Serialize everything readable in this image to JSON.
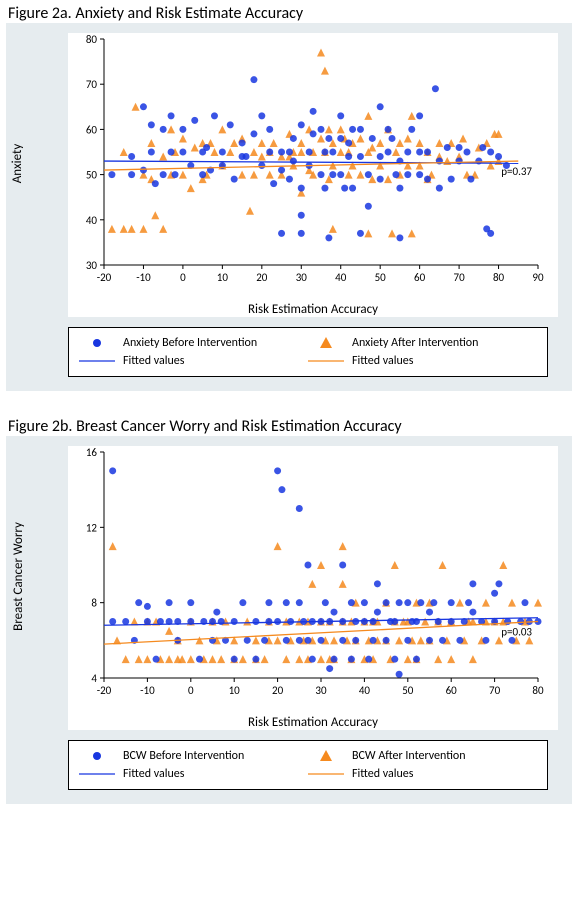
{
  "colors": {
    "panel_bg": "#e6ecef",
    "plot_bg": "#ffffff",
    "axis": "#000000",
    "before": "#1836e0",
    "after": "#f58a1f"
  },
  "chartA": {
    "title": "Figure 2a. Anxiety and Risk Estimate Accuracy",
    "xlabel": "Risk Estimation Accuracy",
    "ylabel": "Anxiety",
    "xlim": [
      -20,
      90
    ],
    "ylim": [
      30,
      80
    ],
    "xticks": [
      -20,
      -10,
      0,
      10,
      20,
      30,
      40,
      50,
      60,
      70,
      80,
      90
    ],
    "yticks": [
      30,
      40,
      50,
      60,
      70,
      80
    ],
    "pvalue": "p=0.37",
    "line_before": {
      "x1": -20,
      "y1": 53,
      "x2": 85,
      "y2": 52.5
    },
    "line_after": {
      "x1": -20,
      "y1": 51,
      "x2": 85,
      "y2": 53
    },
    "legend_before": "Anxiety Before Intervention",
    "legend_after": "Anxiety After Intervention",
    "legend_line": "Fitted values",
    "points_before": [
      [
        -18,
        50
      ],
      [
        -13,
        50
      ],
      [
        -13,
        54
      ],
      [
        -10,
        51
      ],
      [
        -10,
        65
      ],
      [
        -8,
        61
      ],
      [
        -8,
        55
      ],
      [
        -7,
        48
      ],
      [
        -5,
        50
      ],
      [
        -5,
        60
      ],
      [
        -3,
        55
      ],
      [
        -3,
        63
      ],
      [
        -2,
        50
      ],
      [
        0,
        55
      ],
      [
        0,
        60
      ],
      [
        2,
        52
      ],
      [
        3,
        62
      ],
      [
        5,
        55
      ],
      [
        5,
        50
      ],
      [
        6,
        56
      ],
      [
        7,
        51
      ],
      [
        8,
        63
      ],
      [
        10,
        55
      ],
      [
        10,
        52
      ],
      [
        12,
        61
      ],
      [
        13,
        49
      ],
      [
        15,
        54
      ],
      [
        15,
        57
      ],
      [
        16,
        54
      ],
      [
        18,
        59
      ],
      [
        18,
        71
      ],
      [
        20,
        63
      ],
      [
        20,
        52
      ],
      [
        22,
        55
      ],
      [
        22,
        60
      ],
      [
        23,
        48
      ],
      [
        25,
        55
      ],
      [
        25,
        37
      ],
      [
        25,
        51
      ],
      [
        27,
        49
      ],
      [
        27,
        55
      ],
      [
        28,
        58
      ],
      [
        28,
        53
      ],
      [
        30,
        61
      ],
      [
        30,
        47
      ],
      [
        30,
        41
      ],
      [
        30,
        37
      ],
      [
        32,
        52
      ],
      [
        32,
        55
      ],
      [
        33,
        59
      ],
      [
        33,
        64
      ],
      [
        35,
        60
      ],
      [
        35,
        50
      ],
      [
        36,
        47
      ],
      [
        36,
        55
      ],
      [
        37,
        58
      ],
      [
        37,
        36
      ],
      [
        38,
        50
      ],
      [
        38,
        55
      ],
      [
        40,
        58
      ],
      [
        40,
        50
      ],
      [
        40,
        63
      ],
      [
        41,
        47
      ],
      [
        42,
        57
      ],
      [
        42,
        54
      ],
      [
        43,
        60
      ],
      [
        43,
        47
      ],
      [
        45,
        54
      ],
      [
        45,
        60
      ],
      [
        45,
        37
      ],
      [
        47,
        50
      ],
      [
        47,
        43
      ],
      [
        48,
        58
      ],
      [
        50,
        54
      ],
      [
        50,
        65
      ],
      [
        50,
        49
      ],
      [
        52,
        55
      ],
      [
        52,
        60
      ],
      [
        53,
        58
      ],
      [
        54,
        50
      ],
      [
        55,
        47
      ],
      [
        55,
        53
      ],
      [
        55,
        36
      ],
      [
        57,
        55
      ],
      [
        57,
        50
      ],
      [
        58,
        60
      ],
      [
        60,
        50
      ],
      [
        60,
        55
      ],
      [
        60,
        63
      ],
      [
        62,
        55
      ],
      [
        62,
        49
      ],
      [
        64,
        69
      ],
      [
        65,
        53
      ],
      [
        65,
        47
      ],
      [
        67,
        56
      ],
      [
        68,
        49
      ],
      [
        70,
        53
      ],
      [
        70,
        56
      ],
      [
        72,
        55
      ],
      [
        73,
        49
      ],
      [
        75,
        53
      ],
      [
        76,
        56
      ],
      [
        77,
        38
      ],
      [
        78,
        37
      ],
      [
        78,
        55
      ],
      [
        80,
        54
      ],
      [
        82,
        52
      ]
    ],
    "points_after": [
      [
        -18,
        38
      ],
      [
        -15,
        38
      ],
      [
        -15,
        55
      ],
      [
        -12,
        65
      ],
      [
        -10,
        38
      ],
      [
        -10,
        50
      ],
      [
        -8,
        57
      ],
      [
        -8,
        49
      ],
      [
        -7,
        41
      ],
      [
        -5,
        54
      ],
      [
        -5,
        38
      ],
      [
        -3,
        60
      ],
      [
        -3,
        50
      ],
      [
        -2,
        55
      ],
      [
        0,
        50
      ],
      [
        0,
        58
      ],
      [
        2,
        47
      ],
      [
        3,
        56
      ],
      [
        5,
        57
      ],
      [
        5,
        49
      ],
      [
        6,
        50
      ],
      [
        7,
        57
      ],
      [
        8,
        55
      ],
      [
        10,
        52
      ],
      [
        10,
        60
      ],
      [
        12,
        55
      ],
      [
        13,
        57
      ],
      [
        15,
        50
      ],
      [
        15,
        58
      ],
      [
        17,
        42
      ],
      [
        18,
        55
      ],
      [
        18,
        50
      ],
      [
        20,
        54
      ],
      [
        20,
        57
      ],
      [
        22,
        50
      ],
      [
        22,
        55
      ],
      [
        23,
        57
      ],
      [
        25,
        54
      ],
      [
        25,
        50
      ],
      [
        27,
        59
      ],
      [
        27,
        54
      ],
      [
        28,
        55
      ],
      [
        28,
        52
      ],
      [
        30,
        57
      ],
      [
        30,
        55
      ],
      [
        30,
        46
      ],
      [
        32,
        60
      ],
      [
        32,
        51
      ],
      [
        33,
        55
      ],
      [
        33,
        50
      ],
      [
        35,
        58
      ],
      [
        35,
        77
      ],
      [
        36,
        55
      ],
      [
        36,
        73
      ],
      [
        37,
        49
      ],
      [
        37,
        60
      ],
      [
        38,
        57
      ],
      [
        38,
        52
      ],
      [
        38,
        38
      ],
      [
        40,
        55
      ],
      [
        40,
        60
      ],
      [
        41,
        58
      ],
      [
        42,
        50
      ],
      [
        42,
        55
      ],
      [
        43,
        52
      ],
      [
        43,
        57
      ],
      [
        45,
        50
      ],
      [
        45,
        58
      ],
      [
        47,
        55
      ],
      [
        47,
        63
      ],
      [
        47,
        37
      ],
      [
        48,
        49
      ],
      [
        50,
        57
      ],
      [
        50,
        52
      ],
      [
        52,
        60
      ],
      [
        52,
        49
      ],
      [
        53,
        37
      ],
      [
        54,
        55
      ],
      [
        55,
        57
      ],
      [
        55,
        50
      ],
      [
        57,
        52
      ],
      [
        57,
        58
      ],
      [
        58,
        63
      ],
      [
        58,
        37
      ],
      [
        60,
        52
      ],
      [
        60,
        57
      ],
      [
        62,
        49
      ],
      [
        62,
        55
      ],
      [
        63,
        50
      ],
      [
        65,
        57
      ],
      [
        65,
        54
      ],
      [
        67,
        53
      ],
      [
        68,
        57
      ],
      [
        70,
        54
      ],
      [
        71,
        58
      ],
      [
        72,
        50
      ],
      [
        74,
        50
      ],
      [
        75,
        56
      ],
      [
        77,
        57
      ],
      [
        78,
        52
      ],
      [
        79,
        59
      ],
      [
        80,
        53
      ],
      [
        80,
        59
      ],
      [
        -13,
        38
      ],
      [
        48,
        56
      ]
    ]
  },
  "chartB": {
    "title": "Figure 2b. Breast Cancer Worry and Risk Estimation Accuracy",
    "xlabel": "Risk Estimation Accuracy",
    "ylabel": "Breast Cancer Worry",
    "xlim": [
      -20,
      80
    ],
    "ylim": [
      4,
      16
    ],
    "xticks": [
      -20,
      -10,
      0,
      10,
      20,
      30,
      40,
      50,
      60,
      70,
      80
    ],
    "yticks": [
      4,
      8,
      12,
      16
    ],
    "pvalue": "p=0.03",
    "line_before": {
      "x1": -20,
      "y1": 6.8,
      "x2": 80,
      "y2": 7.2
    },
    "line_after": {
      "x1": -20,
      "y1": 5.8,
      "x2": 80,
      "y2": 7.0
    },
    "legend_before": "BCW Before Intervention",
    "legend_after": "BCW After Intervention",
    "legend_line": "Fitted values",
    "points_before": [
      [
        -18,
        15
      ],
      [
        -18,
        7
      ],
      [
        -15,
        7
      ],
      [
        -13,
        6
      ],
      [
        -12,
        8
      ],
      [
        -10,
        7
      ],
      [
        -10,
        7.8
      ],
      [
        -8,
        5
      ],
      [
        -7,
        7
      ],
      [
        -5,
        8
      ],
      [
        -5,
        7
      ],
      [
        -3,
        6
      ],
      [
        -3,
        7
      ],
      [
        0,
        7
      ],
      [
        0,
        8
      ],
      [
        2,
        5
      ],
      [
        3,
        7
      ],
      [
        5,
        7
      ],
      [
        5,
        6
      ],
      [
        6,
        7.5
      ],
      [
        7,
        7
      ],
      [
        8,
        6
      ],
      [
        10,
        7
      ],
      [
        10,
        5
      ],
      [
        12,
        8
      ],
      [
        13,
        6
      ],
      [
        15,
        7
      ],
      [
        15,
        5
      ],
      [
        17,
        6
      ],
      [
        18,
        7
      ],
      [
        18,
        8
      ],
      [
        20,
        15
      ],
      [
        20,
        7
      ],
      [
        21,
        14
      ],
      [
        22,
        8
      ],
      [
        22,
        6
      ],
      [
        23,
        7
      ],
      [
        25,
        8
      ],
      [
        25,
        6
      ],
      [
        25,
        13
      ],
      [
        26,
        7
      ],
      [
        27,
        6
      ],
      [
        27,
        10
      ],
      [
        28,
        7
      ],
      [
        28,
        5
      ],
      [
        30,
        7
      ],
      [
        30,
        6
      ],
      [
        31,
        8
      ],
      [
        32,
        7
      ],
      [
        32,
        4.5
      ],
      [
        33,
        7.5
      ],
      [
        33,
        5
      ],
      [
        35,
        6
      ],
      [
        35,
        10
      ],
      [
        35,
        7
      ],
      [
        37,
        8
      ],
      [
        37,
        5
      ],
      [
        38,
        7
      ],
      [
        38,
        6
      ],
      [
        40,
        7
      ],
      [
        40,
        8
      ],
      [
        41,
        5
      ],
      [
        42,
        7
      ],
      [
        42,
        6
      ],
      [
        43,
        7.5
      ],
      [
        43,
        9
      ],
      [
        45,
        8
      ],
      [
        45,
        6
      ],
      [
        46,
        7
      ],
      [
        47,
        5
      ],
      [
        47,
        7
      ],
      [
        48,
        8
      ],
      [
        48,
        4.2
      ],
      [
        50,
        6
      ],
      [
        50,
        8
      ],
      [
        51,
        7
      ],
      [
        52,
        5
      ],
      [
        52,
        7
      ],
      [
        53,
        8
      ],
      [
        55,
        7.5
      ],
      [
        55,
        6
      ],
      [
        56,
        8
      ],
      [
        57,
        7
      ],
      [
        58,
        6
      ],
      [
        60,
        7
      ],
      [
        60,
        8
      ],
      [
        62,
        6
      ],
      [
        63,
        7
      ],
      [
        64,
        8
      ],
      [
        65,
        7.5
      ],
      [
        65,
        9
      ],
      [
        67,
        7
      ],
      [
        68,
        6
      ],
      [
        70,
        7
      ],
      [
        70,
        8.5
      ],
      [
        71,
        9
      ],
      [
        73,
        7
      ],
      [
        74,
        6
      ],
      [
        76,
        7
      ],
      [
        77,
        8
      ],
      [
        78,
        7
      ],
      [
        80,
        7
      ]
    ],
    "points_after": [
      [
        -18,
        11
      ],
      [
        -17,
        6
      ],
      [
        -15,
        5
      ],
      [
        -13,
        7
      ],
      [
        -12,
        5
      ],
      [
        -10,
        5
      ],
      [
        -10,
        7
      ],
      [
        -8,
        7
      ],
      [
        -7,
        5
      ],
      [
        -5,
        5
      ],
      [
        -5,
        6.5
      ],
      [
        -3,
        5
      ],
      [
        -3,
        6
      ],
      [
        -2,
        5
      ],
      [
        0,
        5
      ],
      [
        0,
        7
      ],
      [
        2,
        6
      ],
      [
        3,
        5
      ],
      [
        5,
        7
      ],
      [
        5,
        5
      ],
      [
        6,
        6
      ],
      [
        7,
        5
      ],
      [
        8,
        7
      ],
      [
        10,
        5
      ],
      [
        10,
        6
      ],
      [
        12,
        5
      ],
      [
        13,
        7
      ],
      [
        15,
        5
      ],
      [
        15,
        6
      ],
      [
        17,
        5
      ],
      [
        18,
        6
      ],
      [
        18,
        7
      ],
      [
        20,
        6
      ],
      [
        20,
        11
      ],
      [
        22,
        5
      ],
      [
        22,
        7
      ],
      [
        23,
        6
      ],
      [
        25,
        7
      ],
      [
        25,
        5
      ],
      [
        26,
        6
      ],
      [
        27,
        7
      ],
      [
        27,
        5
      ],
      [
        28,
        9
      ],
      [
        28,
        6
      ],
      [
        30,
        10
      ],
      [
        30,
        5
      ],
      [
        30,
        7
      ],
      [
        31,
        6
      ],
      [
        32,
        5
      ],
      [
        32,
        7
      ],
      [
        33,
        6
      ],
      [
        33,
        5
      ],
      [
        35,
        11
      ],
      [
        35,
        7
      ],
      [
        35,
        9
      ],
      [
        36,
        6
      ],
      [
        37,
        5
      ],
      [
        37,
        7
      ],
      [
        38,
        6
      ],
      [
        38,
        8
      ],
      [
        40,
        5
      ],
      [
        40,
        7
      ],
      [
        41,
        6
      ],
      [
        42,
        7
      ],
      [
        42,
        5
      ],
      [
        43,
        6
      ],
      [
        43,
        7
      ],
      [
        45,
        8
      ],
      [
        45,
        6
      ],
      [
        46,
        5
      ],
      [
        47,
        7
      ],
      [
        47,
        10
      ],
      [
        48,
        6
      ],
      [
        49,
        7
      ],
      [
        50,
        5
      ],
      [
        50,
        7
      ],
      [
        51,
        6
      ],
      [
        52,
        8
      ],
      [
        52,
        5
      ],
      [
        53,
        6
      ],
      [
        54,
        7
      ],
      [
        55,
        8
      ],
      [
        55,
        6
      ],
      [
        57,
        7
      ],
      [
        57,
        5
      ],
      [
        58,
        10
      ],
      [
        59,
        6
      ],
      [
        60,
        5
      ],
      [
        60,
        7
      ],
      [
        62,
        8
      ],
      [
        63,
        6
      ],
      [
        64,
        7
      ],
      [
        65,
        5
      ],
      [
        65,
        7
      ],
      [
        67,
        6
      ],
      [
        68,
        8
      ],
      [
        68,
        7
      ],
      [
        70,
        7
      ],
      [
        71,
        6
      ],
      [
        72,
        7
      ],
      [
        72,
        10
      ],
      [
        74,
        8
      ],
      [
        75,
        6
      ],
      [
        77,
        7
      ],
      [
        78,
        6
      ],
      [
        80,
        8
      ]
    ]
  }
}
